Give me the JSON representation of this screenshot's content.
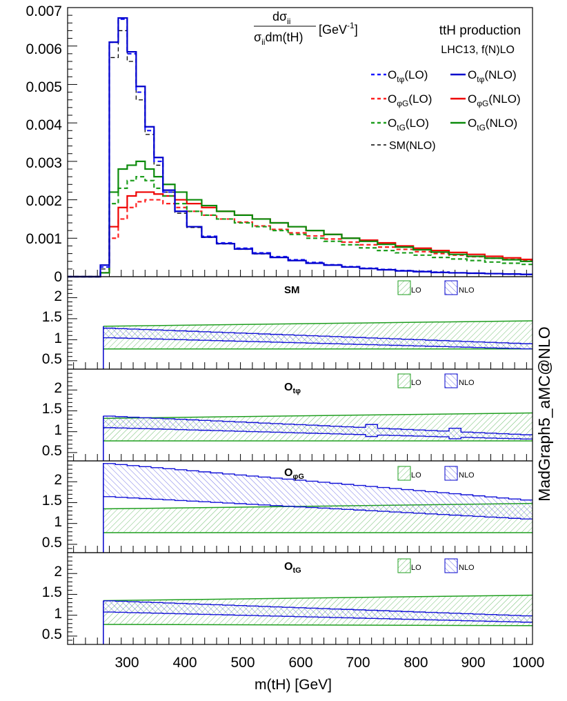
{
  "chart_data": {
    "type": "step-histogram-with-ratio-panels",
    "x_edges": [
      275,
      290,
      305,
      320,
      335,
      350,
      365,
      380,
      400,
      420,
      445,
      470,
      500,
      530,
      560,
      590,
      620,
      650,
      680,
      710,
      740,
      770,
      800,
      830,
      860,
      890,
      920,
      950,
      980,
      1000
    ],
    "xlim": [
      220,
      1000
    ],
    "xticks": [
      "300",
      "400",
      "500",
      "600",
      "700",
      "800",
      "900",
      "1000"
    ],
    "xlabel": "m(tH) [GeV]",
    "top_panel": {
      "ylim": [
        0,
        0.007
      ],
      "yticks": [
        "0",
        "0.001",
        "0.002",
        "0.003",
        "0.004",
        "0.005",
        "0.006",
        "0.007"
      ],
      "ylabel": {
        "num_main": "dσ",
        "num_sub": "ii",
        "den_main1": "σ",
        "den_sub": "ii",
        "den_main2": "dm(tH)",
        "unit": "[GeV",
        "unit_sup": "-1",
        "unit_end": "]"
      },
      "title": "ttH production",
      "subtitle": "LHC13, f(N)LO",
      "series": [
        {
          "name": "tphi_lo",
          "color": "#1a1aff",
          "dash": true,
          "values": [
            0.00025,
            0.0061,
            0.0067,
            0.0058,
            0.0048,
            0.0038,
            0.003,
            0.0022,
            0.0017,
            0.0013,
            0.00105,
            0.00088,
            0.00074,
            0.00062,
            0.00052,
            0.00044,
            0.00037,
            0.00031,
            0.00026,
            0.00022,
            0.00019,
            0.00016,
            0.00014,
            0.00012,
            0.0001,
            9e-05,
            8e-05,
            7e-05,
            6e-05
          ]
        },
        {
          "name": "tphi_nlo",
          "color": "#0000cc",
          "dash": false,
          "values": [
            0.0003,
            0.0061,
            0.00673,
            0.00585,
            0.00495,
            0.0039,
            0.0031,
            0.00225,
            0.0017,
            0.0013,
            0.00103,
            0.00086,
            0.00072,
            0.0006,
            0.0005,
            0.00042,
            0.00035,
            0.0003,
            0.00025,
            0.00021,
            0.00018,
            0.00015,
            0.00013,
            0.00011,
            0.0001,
            9e-05,
            8e-05,
            7e-05,
            6e-05
          ]
        },
        {
          "name": "phig_lo",
          "color": "#ff2020",
          "dash": true,
          "values": [
            0.0001,
            0.001,
            0.0015,
            0.0018,
            0.00195,
            0.002,
            0.002,
            0.0019,
            0.0018,
            0.0017,
            0.0016,
            0.0015,
            0.00142,
            0.00132,
            0.00123,
            0.00114,
            0.00106,
            0.00098,
            0.0009,
            0.00083,
            0.00077,
            0.00071,
            0.00065,
            0.0006,
            0.00056,
            0.00052,
            0.00048,
            0.00045,
            0.00042
          ]
        },
        {
          "name": "phig_nlo",
          "color": "#ee0000",
          "dash": false,
          "values": [
            0.0001,
            0.0013,
            0.0018,
            0.0021,
            0.0022,
            0.0022,
            0.00215,
            0.0021,
            0.002,
            0.0019,
            0.0018,
            0.0017,
            0.0016,
            0.0015,
            0.0014,
            0.0013,
            0.0012,
            0.0011,
            0.001,
            0.00095,
            0.00088,
            0.0008,
            0.00074,
            0.00068,
            0.00063,
            0.00058,
            0.00053,
            0.00049,
            0.00045
          ]
        },
        {
          "name": "tg_lo",
          "color": "#1e9e1e",
          "dash": true,
          "values": [
            0.0001,
            0.0019,
            0.0023,
            0.0025,
            0.0026,
            0.0025,
            0.0023,
            0.0021,
            0.0019,
            0.0017,
            0.0016,
            0.0015,
            0.0014,
            0.0013,
            0.0012,
            0.0011,
            0.001,
            0.00092,
            0.00083,
            0.00075,
            0.00068,
            0.00062,
            0.00056,
            0.0005,
            0.00046,
            0.00042,
            0.00038,
            0.00035,
            0.00032
          ]
        },
        {
          "name": "tg_nlo",
          "color": "#0a8a0a",
          "dash": false,
          "values": [
            0.0001,
            0.0022,
            0.0028,
            0.0029,
            0.003,
            0.0028,
            0.0026,
            0.0024,
            0.0022,
            0.002,
            0.00185,
            0.0017,
            0.0016,
            0.0015,
            0.0014,
            0.0013,
            0.0012,
            0.0011,
            0.001,
            0.00092,
            0.00084,
            0.00077,
            0.0007,
            0.00064,
            0.00058,
            0.00053,
            0.00048,
            0.00044,
            0.0004
          ]
        },
        {
          "name": "sm_nlo",
          "color": "#000000",
          "dash": true,
          "values": [
            0.0002,
            0.0057,
            0.0064,
            0.0056,
            0.0046,
            0.0037,
            0.0029,
            0.0022,
            0.00165,
            0.00128,
            0.00102,
            0.00085,
            0.00071,
            0.00059,
            0.0005,
            0.00042,
            0.00035,
            0.0003,
            0.00025,
            0.00021,
            0.00018,
            0.00015,
            0.00013,
            0.00011,
            0.0001,
            9e-05,
            8e-05,
            7e-05,
            6e-05
          ]
        }
      ],
      "legend": [
        {
          "series": "tphi_lo",
          "label_main": "O",
          "label_sub": "tφ",
          "label_rest": "(LO)"
        },
        {
          "series": "tphi_nlo",
          "label_main": "O",
          "label_sub": "tφ",
          "label_rest": "(NLO)"
        },
        {
          "series": "phig_lo",
          "label_main": "O",
          "label_sub": "φG",
          "label_rest": "(LO)"
        },
        {
          "series": "phig_nlo",
          "label_main": "O",
          "label_sub": "φG",
          "label_rest": "(NLO)"
        },
        {
          "series": "tg_lo",
          "label_main": "O",
          "label_sub": "tG",
          "label_rest": "(LO)"
        },
        {
          "series": "tg_nlo",
          "label_main": "O",
          "label_sub": "tG",
          "label_rest": "(NLO)"
        },
        {
          "series": "sm_nlo",
          "label_main": "",
          "label_sub": "",
          "label_rest": "SM(NLO)"
        }
      ]
    },
    "ratio_panels": [
      {
        "name": "sm",
        "label_main": "SM",
        "label_sub": "",
        "lo_band": {
          "lo": [
            0.78,
            0.78
          ],
          "hi": [
            1.32,
            1.45
          ]
        },
        "nlo_band": {
          "lo": [
            1.05,
            0.78
          ],
          "hi": [
            1.28,
            0.9
          ]
        }
      },
      {
        "name": "otphi",
        "label_main": "O",
        "label_sub": "tφ",
        "lo_band": {
          "lo": [
            0.78,
            0.78
          ],
          "hi": [
            1.32,
            1.45
          ]
        },
        "nlo_band": {
          "lo": [
            1.1,
            0.82
          ],
          "hi": [
            1.38,
            0.92
          ]
        }
      },
      {
        "name": "ophig",
        "label_main": "O",
        "label_sub": "φG",
        "lo_band": {
          "lo": [
            0.78,
            0.78
          ],
          "hi": [
            1.35,
            1.48
          ]
        },
        "nlo_band": {
          "lo": [
            1.65,
            1.1
          ],
          "hi": [
            2.45,
            1.55
          ]
        }
      },
      {
        "name": "otg",
        "label_main": "O",
        "label_sub": "tG",
        "lo_band": {
          "lo": [
            0.78,
            0.75
          ],
          "hi": [
            1.35,
            1.48
          ]
        },
        "nlo_band": {
          "lo": [
            1.08,
            0.83
          ],
          "hi": [
            1.35,
            0.98
          ]
        }
      }
    ],
    "ratio_ylim": [
      0.3,
      2.5
    ],
    "ratio_yticks": [
      "0.5",
      "1",
      "1.5",
      "2"
    ],
    "ratio_legend": {
      "lo": "LO",
      "nlo": "NLO"
    },
    "watermark": "MadGraph5_aMC@NLO",
    "colors": {
      "blue": "#0000cc",
      "red": "#ee0000",
      "green": "#0a8a0a",
      "lo_band": "#1e9e1e",
      "nlo_band": "#2a2ad8"
    }
  }
}
